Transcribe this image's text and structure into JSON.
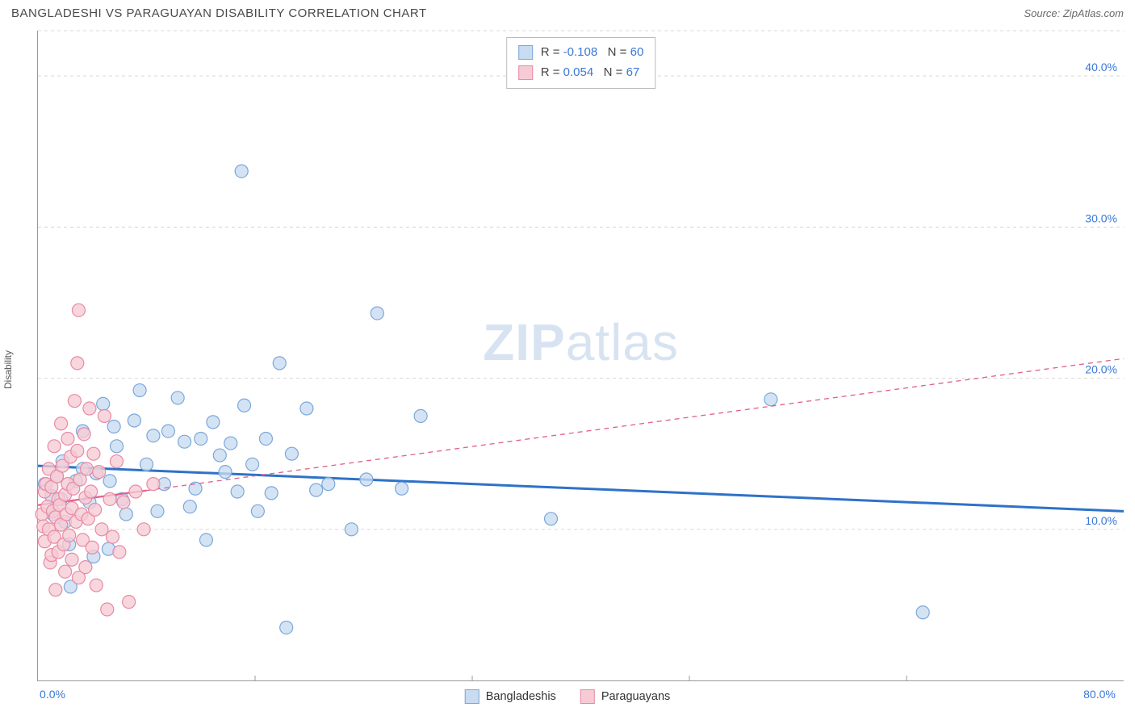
{
  "title": "BANGLADESHI VS PARAGUAYAN DISABILITY CORRELATION CHART",
  "source": "Source: ZipAtlas.com",
  "ylabel": "Disability",
  "watermark_zip": "ZIP",
  "watermark_atlas": "atlas",
  "chart": {
    "type": "scatter",
    "xlim": [
      0,
      80
    ],
    "ylim": [
      0,
      43
    ],
    "xticks": [
      {
        "v": 0,
        "label": "0.0%"
      },
      {
        "v": 80,
        "label": "80.0%"
      }
    ],
    "yticks": [
      {
        "v": 10,
        "label": "10.0%"
      },
      {
        "v": 20,
        "label": "20.0%"
      },
      {
        "v": 30,
        "label": "30.0%"
      },
      {
        "v": 40,
        "label": "40.0%"
      }
    ],
    "y_grid_extra_top": 43,
    "grid_color": "#d8d8d8",
    "background_color": "#ffffff",
    "tick_label_color": "#3a78d6",
    "marker_radius": 8,
    "series": [
      {
        "name": "Bangladeshis",
        "fill": "#c8dbf1",
        "stroke": "#7ba7d9",
        "fill_opacity": 0.78,
        "R": "-0.108",
        "N": "60",
        "trend": {
          "x1": 0,
          "y1": 14.2,
          "x2": 80,
          "y2": 11.2,
          "solid_until_x": 80,
          "color": "#2e72c8",
          "width": 3
        },
        "points": [
          [
            0.5,
            13.0
          ],
          [
            1.0,
            12.2
          ],
          [
            1.1,
            11.0
          ],
          [
            1.4,
            13.5
          ],
          [
            1.7,
            12.0
          ],
          [
            1.8,
            14.5
          ],
          [
            2.0,
            10.5
          ],
          [
            2.3,
            9.0
          ],
          [
            2.4,
            6.2
          ],
          [
            2.8,
            13.2
          ],
          [
            3.3,
            14.0
          ],
          [
            3.3,
            16.5
          ],
          [
            3.8,
            11.8
          ],
          [
            4.1,
            8.2
          ],
          [
            4.3,
            13.7
          ],
          [
            4.8,
            18.3
          ],
          [
            5.2,
            8.7
          ],
          [
            5.3,
            13.2
          ],
          [
            5.6,
            16.8
          ],
          [
            5.8,
            15.5
          ],
          [
            6.2,
            12.0
          ],
          [
            6.5,
            11.0
          ],
          [
            7.1,
            17.2
          ],
          [
            7.5,
            19.2
          ],
          [
            8.0,
            14.3
          ],
          [
            8.5,
            16.2
          ],
          [
            8.8,
            11.2
          ],
          [
            9.3,
            13.0
          ],
          [
            9.6,
            16.5
          ],
          [
            10.3,
            18.7
          ],
          [
            10.8,
            15.8
          ],
          [
            11.2,
            11.5
          ],
          [
            11.6,
            12.7
          ],
          [
            12.0,
            16.0
          ],
          [
            12.4,
            9.3
          ],
          [
            12.9,
            17.1
          ],
          [
            13.4,
            14.9
          ],
          [
            13.8,
            13.8
          ],
          [
            14.2,
            15.7
          ],
          [
            14.7,
            12.5
          ],
          [
            15.0,
            33.7
          ],
          [
            15.2,
            18.2
          ],
          [
            15.8,
            14.3
          ],
          [
            16.2,
            11.2
          ],
          [
            16.8,
            16.0
          ],
          [
            17.2,
            12.4
          ],
          [
            17.8,
            21.0
          ],
          [
            18.3,
            3.5
          ],
          [
            18.7,
            15.0
          ],
          [
            19.8,
            18.0
          ],
          [
            20.5,
            12.6
          ],
          [
            21.4,
            13.0
          ],
          [
            23.1,
            10.0
          ],
          [
            24.2,
            13.3
          ],
          [
            25.0,
            24.3
          ],
          [
            26.8,
            12.7
          ],
          [
            28.2,
            17.5
          ],
          [
            37.8,
            10.7
          ],
          [
            54.0,
            18.6
          ],
          [
            65.2,
            4.5
          ]
        ]
      },
      {
        "name": "Paraguayans",
        "fill": "#f6cbd5",
        "stroke": "#e88aa3",
        "fill_opacity": 0.78,
        "R": "0.054",
        "N": "67",
        "trend": {
          "x1": 0,
          "y1": 11.6,
          "x2": 80,
          "y2": 21.3,
          "solid_until_x": 8,
          "color": "#e26089",
          "width": 2.2,
          "dash": "6 5"
        },
        "points": [
          [
            0.3,
            11.0
          ],
          [
            0.4,
            10.2
          ],
          [
            0.5,
            12.5
          ],
          [
            0.5,
            9.2
          ],
          [
            0.6,
            13.0
          ],
          [
            0.7,
            11.5
          ],
          [
            0.8,
            10.0
          ],
          [
            0.8,
            14.0
          ],
          [
            0.9,
            7.8
          ],
          [
            1.0,
            12.8
          ],
          [
            1.0,
            8.3
          ],
          [
            1.1,
            11.2
          ],
          [
            1.2,
            15.5
          ],
          [
            1.2,
            9.5
          ],
          [
            1.3,
            10.8
          ],
          [
            1.3,
            6.0
          ],
          [
            1.4,
            13.5
          ],
          [
            1.5,
            12.0
          ],
          [
            1.5,
            8.5
          ],
          [
            1.6,
            11.6
          ],
          [
            1.7,
            17.0
          ],
          [
            1.7,
            10.3
          ],
          [
            1.8,
            14.2
          ],
          [
            1.9,
            9.0
          ],
          [
            2.0,
            12.3
          ],
          [
            2.0,
            7.2
          ],
          [
            2.1,
            11.0
          ],
          [
            2.2,
            16.0
          ],
          [
            2.2,
            13.0
          ],
          [
            2.3,
            9.6
          ],
          [
            2.4,
            14.8
          ],
          [
            2.5,
            11.4
          ],
          [
            2.5,
            8.0
          ],
          [
            2.6,
            12.7
          ],
          [
            2.7,
            18.5
          ],
          [
            2.8,
            10.5
          ],
          [
            2.9,
            15.2
          ],
          [
            2.9,
            21.0
          ],
          [
            3.0,
            24.5
          ],
          [
            3.0,
            6.8
          ],
          [
            3.1,
            13.3
          ],
          [
            3.2,
            11.0
          ],
          [
            3.3,
            9.3
          ],
          [
            3.4,
            16.3
          ],
          [
            3.5,
            12.1
          ],
          [
            3.5,
            7.5
          ],
          [
            3.6,
            14.0
          ],
          [
            3.7,
            10.7
          ],
          [
            3.8,
            18.0
          ],
          [
            3.9,
            12.5
          ],
          [
            4.0,
            8.8
          ],
          [
            4.1,
            15.0
          ],
          [
            4.2,
            11.3
          ],
          [
            4.3,
            6.3
          ],
          [
            4.5,
            13.8
          ],
          [
            4.7,
            10.0
          ],
          [
            4.9,
            17.5
          ],
          [
            5.1,
            4.7
          ],
          [
            5.3,
            12.0
          ],
          [
            5.5,
            9.5
          ],
          [
            5.8,
            14.5
          ],
          [
            6.0,
            8.5
          ],
          [
            6.3,
            11.8
          ],
          [
            6.7,
            5.2
          ],
          [
            7.2,
            12.5
          ],
          [
            7.8,
            10.0
          ],
          [
            8.5,
            13.0
          ]
        ]
      }
    ]
  },
  "legend_top_rows": [
    {
      "sw_fill": "#c8dbf1",
      "sw_stroke": "#7ba7d9",
      "r": "-0.108",
      "n": "60"
    },
    {
      "sw_fill": "#f6cbd5",
      "sw_stroke": "#e88aa3",
      "r": "0.054",
      "n": "67"
    }
  ],
  "legend_bottom": [
    {
      "sw_fill": "#c8dbf1",
      "sw_stroke": "#7ba7d9",
      "label": "Bangladeshis"
    },
    {
      "sw_fill": "#f6cbd5",
      "sw_stroke": "#e88aa3",
      "label": "Paraguayans"
    }
  ]
}
